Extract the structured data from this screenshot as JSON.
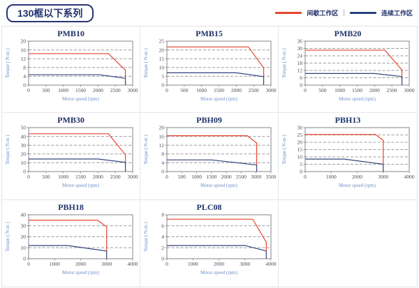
{
  "header": {
    "title": "130框以下系列",
    "legend": [
      {
        "label": "间歇工作区",
        "color": "#E8432D"
      },
      {
        "label": "连续工作区",
        "color": "#2A3F7E"
      }
    ],
    "legend_separator": "|"
  },
  "colors": {
    "red": "#E8432D",
    "blue": "#33437B",
    "grid": "#9C9CA0",
    "axis": "#85858B",
    "title_navy": "#1F3268",
    "axis_label_blue": "#6C8CC9",
    "cell_border": "#E1E1E7"
  },
  "chart_data": [
    {
      "type": "line",
      "title": "PMB10",
      "xlabel": "Motor speed (rpm)",
      "ylabel": "Torque ( N-m )",
      "xlim": [
        0,
        3000
      ],
      "xticks": [
        0,
        500,
        1000,
        1500,
        2000,
        2500,
        3000
      ],
      "ylim": [
        0,
        20
      ],
      "yticks": [
        0,
        4,
        8,
        12,
        16,
        20
      ],
      "grid": "horizontal-dashed",
      "legend_position": "none",
      "series": [
        {
          "name": "间歇工作区",
          "color": "#E8432D",
          "points": [
            [
              0,
              14.3
            ],
            [
              2300,
              14.3
            ],
            [
              2790,
              6.8
            ],
            [
              2790,
              3.1
            ]
          ]
        },
        {
          "name": "连续工作区",
          "color": "#33437B",
          "points": [
            [
              0,
              4.7
            ],
            [
              2050,
              4.7
            ],
            [
              2790,
              3.1
            ],
            [
              2790,
              0
            ]
          ]
        }
      ]
    },
    {
      "type": "line",
      "title": "PMB15",
      "xlabel": "Motor speed (rpm)",
      "ylabel": "Torque ( N-m )",
      "xlim": [
        0,
        3000
      ],
      "xticks": [
        0,
        500,
        1000,
        1500,
        2000,
        2500,
        3000
      ],
      "ylim": [
        0,
        25
      ],
      "yticks": [
        0,
        5,
        10,
        15,
        20,
        25
      ],
      "grid": "horizontal-dashed",
      "legend_position": "none",
      "series": [
        {
          "name": "间歇工作区",
          "color": "#E8432D",
          "points": [
            [
              0,
              21.7
            ],
            [
              2350,
              21.7
            ],
            [
              2790,
              9.8
            ],
            [
              2790,
              4.8
            ]
          ]
        },
        {
          "name": "连续工作区",
          "color": "#33437B",
          "points": [
            [
              0,
              7
            ],
            [
              2000,
              7
            ],
            [
              2790,
              4.8
            ],
            [
              2790,
              0
            ]
          ]
        }
      ]
    },
    {
      "type": "line",
      "title": "PMB20",
      "xlabel": "Motor speed (rpm)",
      "ylabel": "Torque ( N-m )",
      "xlim": [
        0,
        3000
      ],
      "xticks": [
        0,
        500,
        1000,
        1500,
        2000,
        2500,
        3000
      ],
      "ylim": [
        0,
        36
      ],
      "yticks": [
        0,
        6,
        12,
        18,
        24,
        30,
        36
      ],
      "grid": "horizontal-dashed",
      "legend_position": "none",
      "series": [
        {
          "name": "间歇工作区",
          "color": "#E8432D",
          "points": [
            [
              0,
              28.6
            ],
            [
              2300,
              28.6
            ],
            [
              2790,
              12.4
            ],
            [
              2790,
              7
            ]
          ]
        },
        {
          "name": "连续工作区",
          "color": "#33437B",
          "points": [
            [
              0,
              9.5
            ],
            [
              2000,
              9.5
            ],
            [
              2790,
              7
            ],
            [
              2790,
              0
            ]
          ]
        }
      ]
    },
    {
      "type": "line",
      "title": "PMB30",
      "xlabel": "Motor speed (rpm)",
      "ylabel": "Torque ( N-m )",
      "xlim": [
        0,
        3000
      ],
      "xticks": [
        0,
        500,
        1000,
        1500,
        2000,
        2500,
        3000
      ],
      "ylim": [
        0,
        50
      ],
      "yticks": [
        0,
        10,
        20,
        30,
        40,
        50
      ],
      "grid": "horizontal-dashed",
      "legend_position": "none",
      "series": [
        {
          "name": "间歇工作区",
          "color": "#E8432D",
          "points": [
            [
              0,
              43
            ],
            [
              2300,
              43
            ],
            [
              2790,
              19
            ],
            [
              2790,
              10.5
            ]
          ]
        },
        {
          "name": "连续工作区",
          "color": "#33437B",
          "points": [
            [
              0,
              14.3
            ],
            [
              2000,
              14.3
            ],
            [
              2790,
              10.5
            ],
            [
              2790,
              0
            ]
          ]
        }
      ]
    },
    {
      "type": "line",
      "title": "PBH09",
      "xlabel": "Motor speed (rpm)",
      "ylabel": "Torque ( N-m )",
      "xlim": [
        0,
        3500
      ],
      "xticks": [
        0,
        500,
        1000,
        1500,
        2000,
        2500,
        3000,
        3500
      ],
      "ylim": [
        0,
        20
      ],
      "yticks": [
        0,
        4,
        8,
        12,
        16,
        20
      ],
      "grid": "horizontal-dashed",
      "legend_position": "none",
      "series": [
        {
          "name": "间歇工作区",
          "color": "#E8432D",
          "points": [
            [
              0,
              16.3
            ],
            [
              2700,
              16.3
            ],
            [
              3020,
              13
            ],
            [
              3020,
              3
            ]
          ]
        },
        {
          "name": "连续工作区",
          "color": "#33437B",
          "points": [
            [
              0,
              5.3
            ],
            [
              1500,
              5.3
            ],
            [
              3020,
              3
            ],
            [
              3020,
              0
            ]
          ]
        }
      ]
    },
    {
      "type": "line",
      "title": "PBH13",
      "xlabel": "Motor speed (rpm)",
      "ylabel": "Torque ( N-m )",
      "xlim": [
        0,
        4000
      ],
      "xticks": [
        0,
        1000,
        2000,
        3000,
        4000
      ],
      "ylim": [
        0,
        30
      ],
      "yticks": [
        0,
        5,
        10,
        15,
        20,
        25,
        30
      ],
      "grid": "horizontal-dashed",
      "legend_position": "none",
      "series": [
        {
          "name": "间歇工作区",
          "color": "#E8432D",
          "points": [
            [
              0,
              25.3
            ],
            [
              2700,
              25.3
            ],
            [
              3000,
              21.3
            ],
            [
              3000,
              5
            ]
          ]
        },
        {
          "name": "连续工作区",
          "color": "#33437B",
          "points": [
            [
              0,
              8.5
            ],
            [
              1500,
              8.5
            ],
            [
              3000,
              5
            ],
            [
              3000,
              0
            ]
          ]
        }
      ]
    },
    {
      "type": "line",
      "title": "PBH18",
      "xlabel": "Motor speed (rpm)",
      "ylabel": "Torque ( N-m )",
      "xlim": [
        0,
        4000
      ],
      "xticks": [
        0,
        1000,
        2000,
        3000,
        4000
      ],
      "ylim": [
        0,
        40
      ],
      "yticks": [
        0,
        10,
        20,
        30,
        40
      ],
      "grid": "horizontal-dashed",
      "legend_position": "none",
      "series": [
        {
          "name": "间歇工作区",
          "color": "#E8432D",
          "points": [
            [
              0,
              35
            ],
            [
              2650,
              35
            ],
            [
              3000,
              29
            ],
            [
              3000,
              7
            ]
          ]
        },
        {
          "name": "连续工作区",
          "color": "#33437B",
          "points": [
            [
              0,
              12
            ],
            [
              1500,
              12
            ],
            [
              3000,
              7
            ],
            [
              3000,
              0
            ]
          ]
        }
      ]
    },
    {
      "type": "line",
      "title": "PLC08",
      "xlabel": "Motor speed (rpm)",
      "ylabel": "Torque ( N-m )",
      "xlim": [
        0,
        4000
      ],
      "xticks": [
        0,
        1000,
        2000,
        3000,
        4000
      ],
      "ylim": [
        0,
        8
      ],
      "yticks": [
        0,
        2,
        4,
        6,
        8
      ],
      "grid": "horizontal-dashed",
      "legend_position": "none",
      "series": [
        {
          "name": "间歇工作区",
          "color": "#E8432D",
          "points": [
            [
              0,
              7.2
            ],
            [
              3300,
              7.2
            ],
            [
              3820,
              3
            ],
            [
              3820,
              1.4
            ]
          ]
        },
        {
          "name": "连续工作区",
          "color": "#33437B",
          "points": [
            [
              0,
              2.4
            ],
            [
              3000,
              2.4
            ],
            [
              3820,
              1.4
            ],
            [
              3820,
              0
            ]
          ]
        }
      ]
    }
  ]
}
